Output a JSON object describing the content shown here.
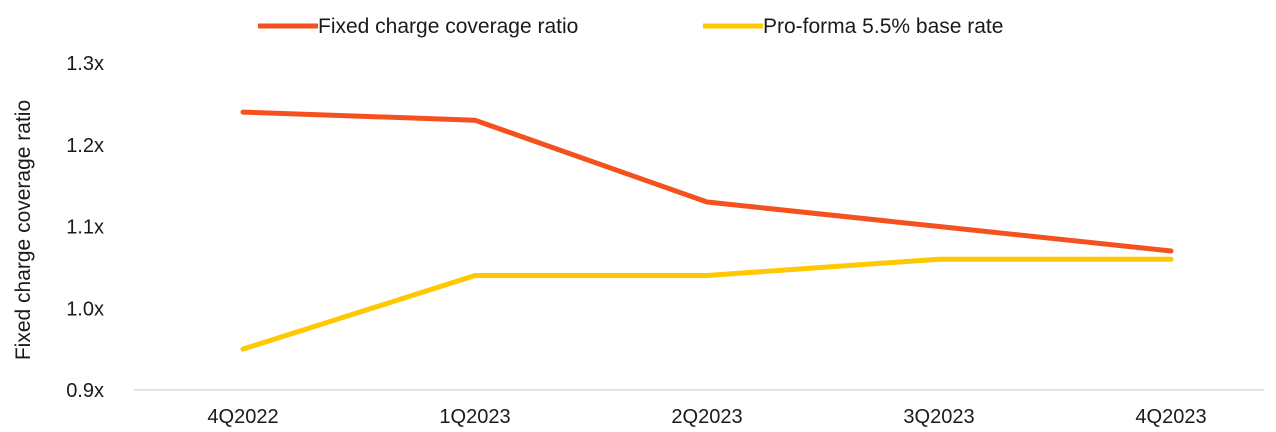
{
  "chart_data": {
    "type": "line",
    "categories": [
      "4Q2022",
      "1Q2023",
      "2Q2023",
      "3Q2023",
      "4Q2023"
    ],
    "series": [
      {
        "name": "Fixed charge coverage ratio",
        "values": [
          1.24,
          1.23,
          1.13,
          1.1,
          1.07
        ],
        "color": "#f4511e"
      },
      {
        "name": "Pro-forma 5.5% base rate",
        "values": [
          0.95,
          1.04,
          1.04,
          1.06,
          1.06
        ],
        "color": "#ffc800"
      }
    ],
    "ylabel": "Fixed charge coverage ratio",
    "xlabel": "",
    "ylim": [
      0.9,
      1.3
    ],
    "yticks": [
      0.9,
      1.0,
      1.1,
      1.2,
      1.3
    ],
    "ytick_labels": [
      "0.9x",
      "1.0x",
      "1.1x",
      "1.2x",
      "1.3x"
    ],
    "legend_position": "top-center",
    "grid": false,
    "axis_color": "#d9d9d9"
  }
}
